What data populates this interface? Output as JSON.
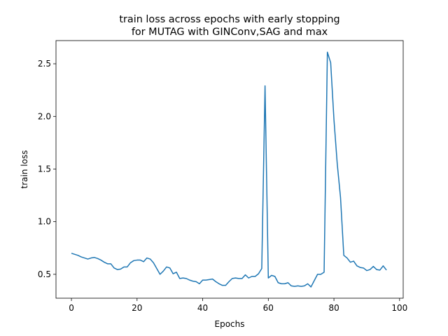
{
  "chart_data": {
    "type": "line",
    "title": [
      "train loss across epochs with early stopping",
      "for MUTAG with GINConv,SAG and max"
    ],
    "x_label": "Epochs",
    "y_label": "train loss",
    "x": [
      0,
      1,
      2,
      3,
      4,
      5,
      6,
      7,
      8,
      9,
      10,
      11,
      12,
      13,
      14,
      15,
      16,
      17,
      18,
      19,
      20,
      21,
      22,
      23,
      24,
      25,
      26,
      27,
      28,
      29,
      30,
      31,
      32,
      33,
      34,
      35,
      36,
      37,
      38,
      39,
      40,
      41,
      42,
      43,
      44,
      45,
      46,
      47,
      48,
      49,
      50,
      51,
      52,
      53,
      54,
      55,
      56,
      57,
      58,
      59,
      60,
      61,
      62,
      63,
      64,
      65,
      66,
      67,
      68,
      69,
      70,
      71,
      72,
      73,
      74,
      75,
      76,
      77,
      78,
      79,
      80,
      81,
      82,
      83,
      84,
      85,
      86,
      87,
      88,
      89,
      90,
      91,
      92,
      93,
      94,
      95,
      96
    ],
    "series": [
      {
        "name": "train loss",
        "color": "#1f77b4",
        "values": [
          0.7,
          0.69,
          0.68,
          0.665,
          0.655,
          0.645,
          0.655,
          0.66,
          0.65,
          0.635,
          0.615,
          0.6,
          0.6,
          0.56,
          0.545,
          0.55,
          0.57,
          0.57,
          0.61,
          0.63,
          0.635,
          0.635,
          0.62,
          0.655,
          0.645,
          0.61,
          0.555,
          0.5,
          0.53,
          0.57,
          0.56,
          0.505,
          0.52,
          0.46,
          0.465,
          0.46,
          0.445,
          0.435,
          0.43,
          0.41,
          0.445,
          0.445,
          0.45,
          0.455,
          0.43,
          0.41,
          0.395,
          0.395,
          0.43,
          0.46,
          0.465,
          0.46,
          0.46,
          0.495,
          0.465,
          0.48,
          0.48,
          0.505,
          0.555,
          2.29,
          0.465,
          0.49,
          0.48,
          0.42,
          0.41,
          0.41,
          0.42,
          0.39,
          0.385,
          0.39,
          0.385,
          0.39,
          0.41,
          0.38,
          0.44,
          0.5,
          0.5,
          0.52,
          2.61,
          2.51,
          1.97,
          1.55,
          1.23,
          0.68,
          0.655,
          0.615,
          0.625,
          0.58,
          0.565,
          0.56,
          0.535,
          0.545,
          0.575,
          0.545,
          0.54,
          0.58,
          0.54
        ]
      }
    ],
    "xlim": [
      -4.7,
      101.1
    ],
    "ylim": [
      0.273,
      2.72
    ],
    "xticks": [
      0,
      20,
      40,
      60,
      80,
      100
    ],
    "yticks": [
      0.5,
      {
        "value": 1.0,
        "label": "1.0"
      },
      1.5,
      {
        "value": 2.0,
        "label": "2.0"
      },
      2.5
    ]
  }
}
